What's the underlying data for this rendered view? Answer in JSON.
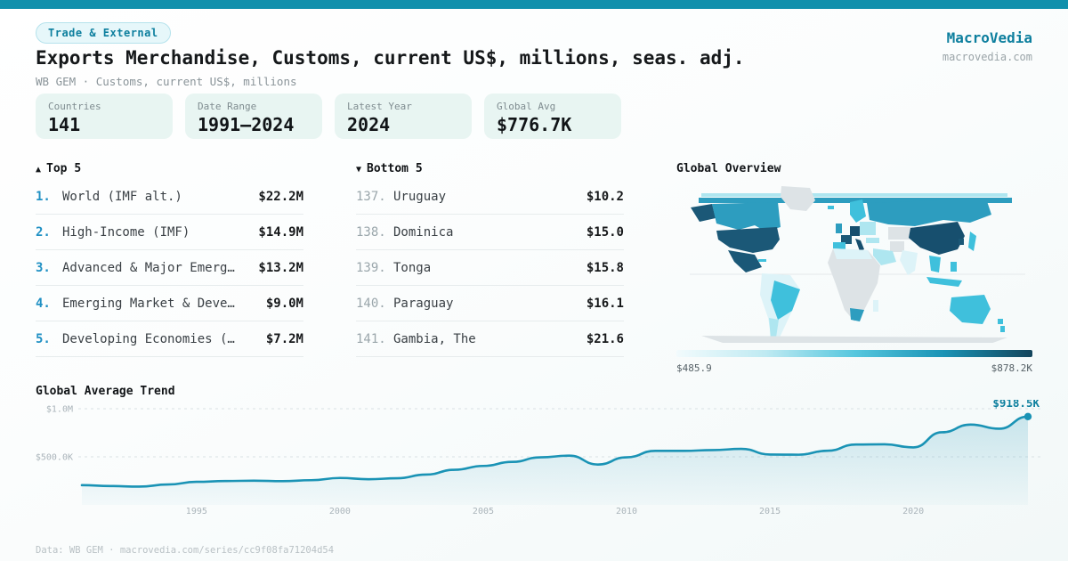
{
  "theme": {
    "accent": "#1190ac",
    "accent-dark": "#0d7f9e",
    "line-color": "#1a93b5",
    "grid-color": "#d9e1e4",
    "tick-color": "#aab4ba"
  },
  "header": {
    "badge": "Trade & External",
    "title": "Exports Merchandise, Customs, current US$, millions, seas. adj.",
    "subtitle": "WB GEM · Customs, current US$, millions"
  },
  "brand": {
    "name": "MacroVedia",
    "domain": "macrovedia.com"
  },
  "stats": [
    {
      "label": "Countries",
      "value": "141"
    },
    {
      "label": "Date Range",
      "value": "1991—2024"
    },
    {
      "label": "Latest Year",
      "value": "2024"
    },
    {
      "label": "Global Avg",
      "value": "$776.7K"
    }
  ],
  "top5": {
    "icon": "▲",
    "label": "Top 5",
    "rows": [
      {
        "rank": "1.",
        "name": "World (IMF alt.)",
        "value": "$22.2M"
      },
      {
        "rank": "2.",
        "name": "High-Income (IMF)",
        "value": "$14.9M"
      },
      {
        "rank": "3.",
        "name": "Advanced & Major Emerg…",
        "value": "$13.2M"
      },
      {
        "rank": "4.",
        "name": "Emerging Market & Deve…",
        "value": "$9.0M"
      },
      {
        "rank": "5.",
        "name": "Developing Economies (…",
        "value": "$7.2M"
      }
    ]
  },
  "bottom5": {
    "icon": "▼",
    "label": "Bottom 5",
    "rows": [
      {
        "rank": "137.",
        "name": "Uruguay",
        "value": "$10.2"
      },
      {
        "rank": "138.",
        "name": "Dominica",
        "value": "$15.0"
      },
      {
        "rank": "139.",
        "name": "Tonga",
        "value": "$15.8"
      },
      {
        "rank": "140.",
        "name": "Paraguay",
        "value": "$16.1"
      },
      {
        "rank": "141.",
        "name": "Gambia, The",
        "value": "$21.6"
      }
    ]
  },
  "chart_data": [
    {
      "type": "line",
      "title": "Global Average Trend",
      "x": [
        1991,
        1992,
        1993,
        1994,
        1995,
        1996,
        1997,
        1998,
        1999,
        2000,
        2001,
        2002,
        2003,
        2004,
        2005,
        2006,
        2007,
        2008,
        2009,
        2010,
        2011,
        2012,
        2013,
        2014,
        2015,
        2016,
        2017,
        2018,
        2019,
        2020,
        2021,
        2022,
        2023,
        2024
      ],
      "values": [
        205,
        196,
        190,
        212,
        240,
        248,
        252,
        247,
        257,
        280,
        267,
        277,
        315,
        365,
        405,
        447,
        495,
        512,
        420,
        495,
        562,
        562,
        570,
        583,
        524,
        522,
        563,
        628,
        630,
        598,
        755,
        835,
        792,
        918.5
      ],
      "unit": "USD thousands",
      "ylim": [
        0,
        1100
      ],
      "yticks": [
        {
          "value": 1000,
          "label": "$1.0M"
        },
        {
          "value": 500,
          "label": "$500.0K"
        }
      ],
      "xticks": [
        1995,
        2000,
        2005,
        2010,
        2015,
        2020
      ],
      "end_label": "$918.5K",
      "grid": "dashed horizontal",
      "legend": "none"
    },
    {
      "type": "choropleth",
      "title": "Global Overview",
      "colorbar": {
        "min_label": "$485.9",
        "max_label": "$878.2K",
        "gradient": [
          "#f2fbfd",
          "#bfeaf2",
          "#56c7de",
          "#1a93b5",
          "#14455c"
        ]
      },
      "shading_legend": {
        "dark": [
          "United States",
          "China",
          "Germany",
          "France",
          "Mexico",
          "Italy",
          "South Korea",
          "Alaska"
        ],
        "medium": [
          "Canada",
          "Russia",
          "United Kingdom",
          "South Africa"
        ],
        "cyan": [
          "Brazil",
          "Australia",
          "Japan",
          "Spain",
          "Scandinavia",
          "Southeast Asia"
        ],
        "light": [
          "Argentina",
          "Saudi Arabia",
          "India",
          "Eastern Europe",
          "Turkey"
        ],
        "no_data": [
          "Greenland",
          "Central Africa",
          "Central Asia",
          "Iran",
          "Antarctica"
        ]
      }
    }
  ],
  "footer": "Data: WB GEM · macrovedia.com/series/cc9f08fa71204d54"
}
